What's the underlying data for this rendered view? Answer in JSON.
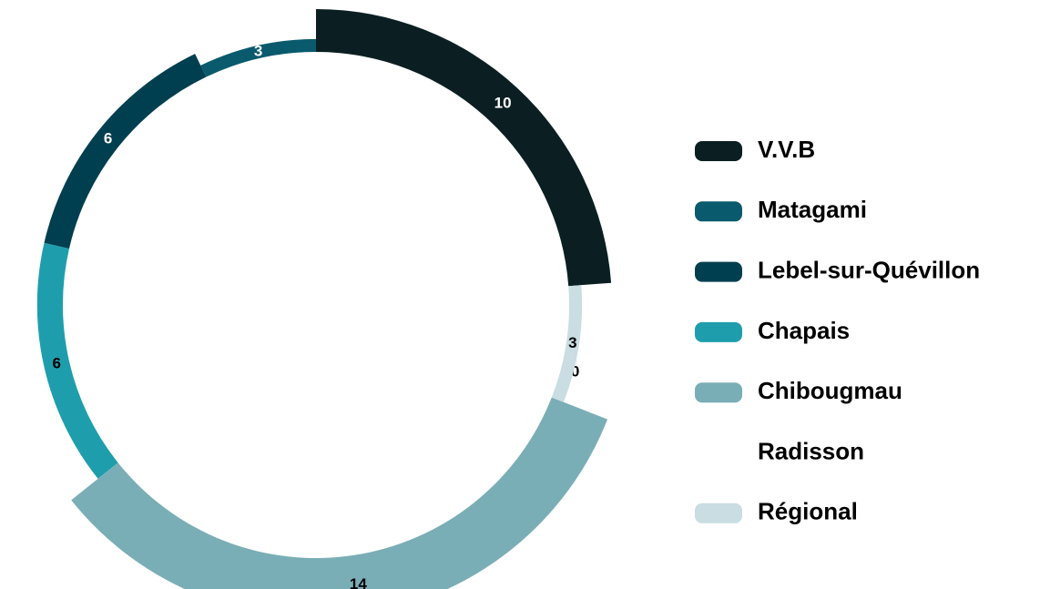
{
  "chart_data": {
    "type": "pie",
    "categories": [
      "V.V.B",
      "Matagami",
      "Lebel-sur-Québillon",
      "Chapais",
      "Chibougmau",
      "Radisson",
      "Régional"
    ],
    "values": [
      10,
      3,
      6,
      6,
      14,
      0,
      3
    ],
    "colors": [
      "#0b1f22",
      "#0a5a6e",
      "#003f50",
      "#1e9eac",
      "#7aaeb6",
      "#ffffff",
      "#c9dde2"
    ]
  }
}
